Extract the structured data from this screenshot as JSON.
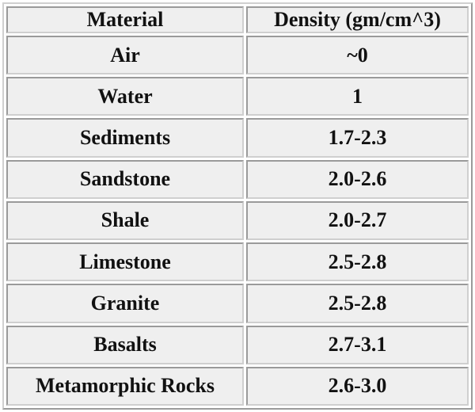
{
  "table": {
    "header": [
      "Material",
      "Density (gm/cm^3)"
    ],
    "rows": [
      [
        "Air",
        "~0"
      ],
      [
        "Water",
        "1"
      ],
      [
        "Sediments",
        "1.7-2.3"
      ],
      [
        "Sandstone",
        "2.0-2.6"
      ],
      [
        "Shale",
        "2.0-2.7"
      ],
      [
        "Limestone",
        "2.5-2.8"
      ],
      [
        "Granite",
        "2.5-2.8"
      ],
      [
        "Basalts",
        "2.7-3.1"
      ],
      [
        "Metamorphic Rocks",
        "2.6-3.0"
      ]
    ]
  }
}
